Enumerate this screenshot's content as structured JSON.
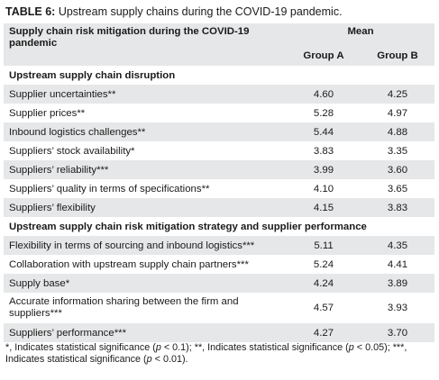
{
  "caption": {
    "label": "TABLE 6:",
    "text": "Upstream supply chains during the COVID-19 pandemic."
  },
  "header": {
    "row_label": "Supply chain risk mitigation during the COVID-19 pandemic",
    "mean_label": "Mean",
    "group_a": "Group A",
    "group_b": "Group B"
  },
  "sections": [
    {
      "title": "Upstream supply chain disruption",
      "rows": [
        {
          "label": "Supplier uncertainties**",
          "a": "4.60",
          "b": "4.25"
        },
        {
          "label": "Supplier prices**",
          "a": "5.28",
          "b": "4.97"
        },
        {
          "label": "Inbound logistics challenges**",
          "a": "5.44",
          "b": "4.88"
        },
        {
          "label": "Suppliers’ stock availability*",
          "a": "3.83",
          "b": "3.35"
        },
        {
          "label": "Suppliers’ reliability***",
          "a": "3.99",
          "b": "3.60"
        },
        {
          "label": "Suppliers’ quality in terms of specifications**",
          "a": "4.10",
          "b": "3.65"
        },
        {
          "label": "Suppliers’ flexibility",
          "a": "4.15",
          "b": "3.83"
        }
      ]
    },
    {
      "title": "Upstream supply chain risk mitigation strategy and supplier performance",
      "rows": [
        {
          "label": "Flexibility in terms of sourcing and inbound logistics***",
          "a": "5.11",
          "b": "4.35"
        },
        {
          "label": "Collaboration with upstream supply chain partners***",
          "a": "5.24",
          "b": "4.41"
        },
        {
          "label": "Supply base*",
          "a": "4.24",
          "b": "3.89"
        },
        {
          "label": "Accurate information sharing between the firm and suppliers***",
          "a": "4.57",
          "b": "3.93"
        },
        {
          "label": "Suppliers’ performance***",
          "a": "4.27",
          "b": "3.70"
        }
      ]
    }
  ],
  "footnote": {
    "p1": "*, Indicates statistical significance (",
    "p1_sym": "p",
    "p1_end": " < 0.1); **, Indicates statistical significance (",
    "p2_sym": "p",
    "p2_end": " < 0.05); ***, Indicates statistical significance (",
    "p3_sym": "p",
    "p3_end": " < 0.01)."
  }
}
